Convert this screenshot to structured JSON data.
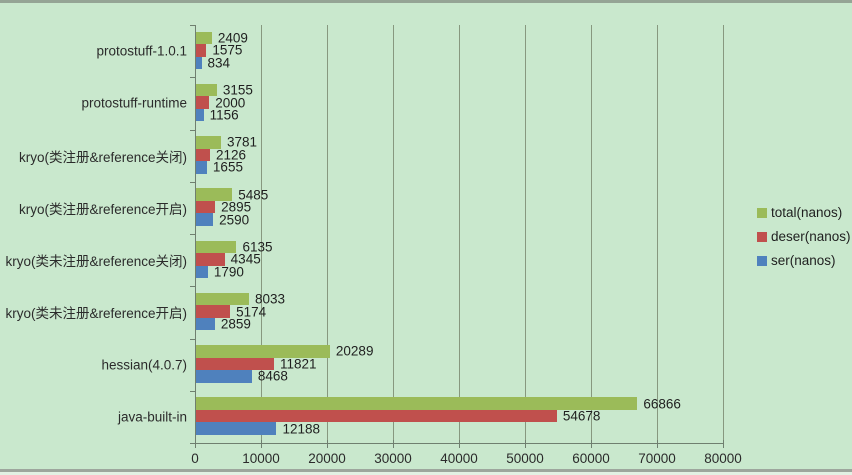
{
  "page": {
    "background_color": "#C9E8CD",
    "border_top_color": "#95A495",
    "border_bottom_color": "#9DA69D"
  },
  "chart_data": {
    "type": "bar",
    "orientation": "horizontal",
    "title": "",
    "xlabel": "",
    "ylabel": "",
    "grid": true,
    "legend_position": "right",
    "xlim": [
      0,
      80000
    ],
    "x_tick_labels": [
      "0",
      "10000",
      "20000",
      "30000",
      "40000",
      "50000",
      "60000",
      "70000",
      "80000"
    ],
    "x_tick_values": [
      0,
      10000,
      20000,
      30000,
      40000,
      50000,
      60000,
      70000,
      80000
    ],
    "categories": [
      "protostuff-1.0.1",
      "protostuff-runtime",
      "kryo(类注册&reference关闭)",
      "kryo(类注册&reference开启)",
      "kryo(类未注册&reference关闭)",
      "kryo(类未注册&reference开启)",
      "hessian(4.0.7)",
      "java-built-in"
    ],
    "series": [
      {
        "name": "total(nanos)",
        "color": "#9BBB59",
        "values": [
          2409,
          3155,
          3781,
          5485,
          6135,
          8033,
          20289,
          66866
        ]
      },
      {
        "name": "deser(nanos)",
        "color": "#C0504D",
        "values": [
          1575,
          2000,
          2126,
          2895,
          4345,
          5174,
          11821,
          54678
        ]
      },
      {
        "name": "ser(nanos)",
        "color": "#4F81BD",
        "values": [
          834,
          1156,
          1655,
          2590,
          1790,
          2859,
          8468,
          12188
        ]
      }
    ],
    "value_labels_shown": true,
    "colors": {
      "gridline": "#87987F",
      "axis": "#6F7F6F",
      "text": "#2b2b2b"
    }
  }
}
